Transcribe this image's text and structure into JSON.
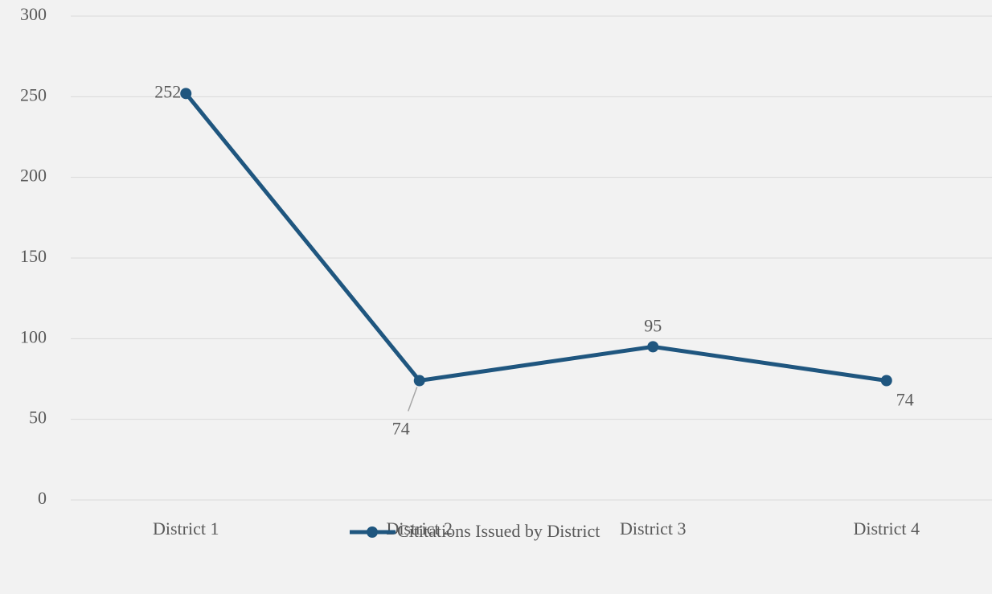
{
  "chart_data": {
    "type": "line",
    "categories": [
      "District 1",
      "District 2",
      "District 3",
      "District 4"
    ],
    "series": [
      {
        "name": "Cititations Issued by District",
        "color": "#1f567f",
        "values": [
          252,
          74,
          95,
          74
        ]
      }
    ],
    "ylim": [
      0,
      300
    ],
    "yticks": [
      0,
      50,
      100,
      150,
      200,
      250,
      300
    ],
    "grid": true,
    "legend": "bottom"
  }
}
